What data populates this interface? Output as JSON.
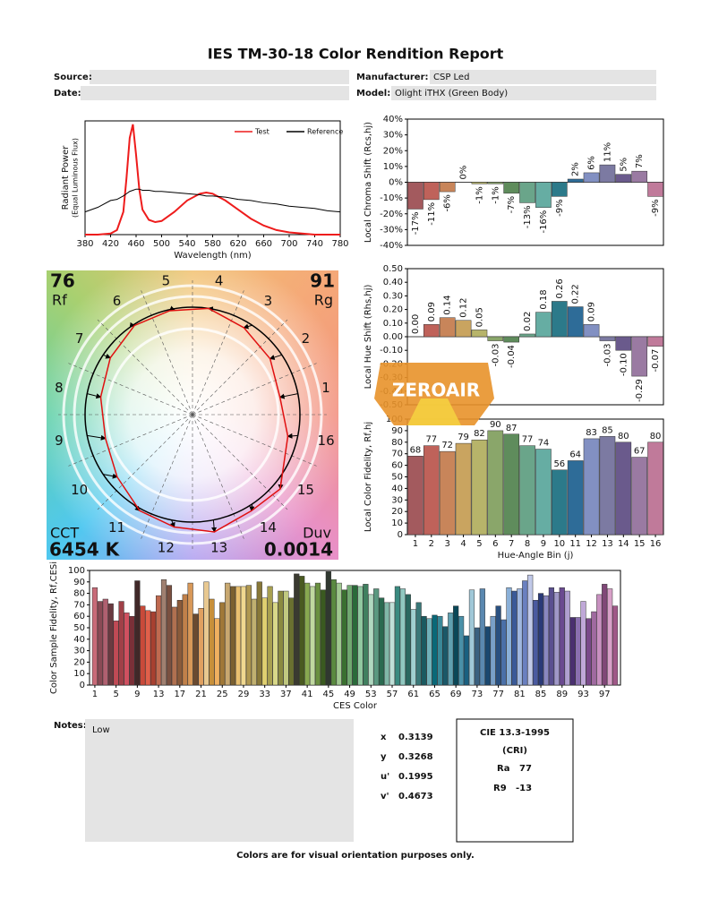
{
  "header": {
    "title": "IES TM-30-18 Color Rendition Report",
    "source_label": "Source:",
    "manufacturer_label": "Manufacturer:",
    "manufacturer": "CSP Led",
    "date_label": "Date:",
    "model_label": "Model:",
    "model": "Olight iTHX (Green Body)"
  },
  "chart_data": [
    {
      "type": "line",
      "x_label": "Wavelength (nm)",
      "y_label": "Radiant Power",
      "y_sublabel": "(Equal Luminous Flux)",
      "x": [
        380,
        400,
        420,
        430,
        440,
        445,
        450,
        455,
        460,
        465,
        470,
        480,
        490,
        500,
        520,
        540,
        560,
        570,
        580,
        600,
        620,
        640,
        660,
        680,
        700,
        720,
        740,
        760,
        780
      ],
      "series": [
        {
          "name": "Test",
          "color": "#ee1c1c",
          "values": [
            0,
            0,
            0.01,
            0.04,
            0.2,
            0.5,
            0.85,
            0.97,
            0.7,
            0.4,
            0.22,
            0.13,
            0.11,
            0.12,
            0.2,
            0.3,
            0.36,
            0.37,
            0.36,
            0.3,
            0.22,
            0.14,
            0.08,
            0.04,
            0.02,
            0.01,
            0,
            0,
            0
          ]
        },
        {
          "name": "Reference",
          "color": "#000000",
          "values": [
            0.2,
            0.24,
            0.3,
            0.31,
            0.34,
            0.36,
            0.38,
            0.39,
            0.4,
            0.4,
            0.39,
            0.39,
            0.38,
            0.38,
            0.37,
            0.36,
            0.35,
            0.34,
            0.34,
            0.33,
            0.31,
            0.3,
            0.28,
            0.27,
            0.25,
            0.24,
            0.23,
            0.21,
            0.2
          ]
        }
      ],
      "xlim": [
        380,
        780
      ],
      "xticks": [
        380,
        420,
        460,
        500,
        540,
        580,
        620,
        660,
        700,
        740,
        780
      ],
      "ylim": [
        0,
        1
      ],
      "legend": "upper right"
    },
    {
      "type": "bar",
      "y_label": "Local Chroma Shift (Rcs,hj)",
      "data_labels": "vertical",
      "values": [
        -17,
        -11,
        -6,
        0,
        -1,
        -1,
        -7,
        -13,
        -16,
        -9,
        2,
        6,
        11,
        5,
        7,
        -9
      ],
      "value_labels": [
        "-17%",
        "-11%",
        "-6%",
        "0%",
        "-1%",
        "-1%",
        "-7%",
        "-13%",
        "-16%",
        "-9%",
        "2%",
        "6%",
        "11%",
        "5%",
        "7%",
        "-9%"
      ],
      "colors": [
        "#a35a5e",
        "#bf625a",
        "#c8855a",
        "#c9a460",
        "#b7b46a",
        "#8aa66a",
        "#5f8c5c",
        "#6aa58a",
        "#66ada3",
        "#2c7a8a",
        "#2e6c98",
        "#8290c2",
        "#7c7aa2",
        "#6a5a8c",
        "#9a7aa2",
        "#c07a9a"
      ],
      "ylim": [
        -40,
        40
      ],
      "yticks": [
        {
          "value": -40,
          "label": "-40%"
        },
        {
          "value": -30,
          "label": "-30%"
        },
        {
          "value": -20,
          "label": "-20%"
        },
        {
          "value": -10,
          "label": "-10%"
        },
        {
          "value": 0,
          "label": "0%"
        },
        {
          "value": 10,
          "label": "10%"
        },
        {
          "value": 20,
          "label": "20%"
        },
        {
          "value": 30,
          "label": "30%"
        },
        {
          "value": 40,
          "label": "40%"
        }
      ]
    },
    {
      "type": "bar",
      "y_label": "Local Hue Shift (Rhs,hj)",
      "data_labels": "vertical",
      "values": [
        0,
        0.09,
        0.14,
        0.12,
        0.05,
        -0.03,
        -0.04,
        0.02,
        0.18,
        0.26,
        0.22,
        0.09,
        -0.03,
        -0.1,
        -0.29,
        -0.07
      ],
      "value_labels": [
        "0.00",
        "0.09",
        "0.14",
        "0.12",
        "0.05",
        "-0.03",
        "-0.04",
        "0.02",
        "0.18",
        "0.26",
        "0.22",
        "0.09",
        "-0.03",
        "-0.10",
        "-0.29",
        "-0.07"
      ],
      "colors": [
        "#a35a5e",
        "#bf625a",
        "#c8855a",
        "#c9a460",
        "#b7b46a",
        "#8aa66a",
        "#5f8c5c",
        "#6aa58a",
        "#66ada3",
        "#2c7a8a",
        "#2e6c98",
        "#8290c2",
        "#7c7aa2",
        "#6a5a8c",
        "#9a7aa2",
        "#c07a9a"
      ],
      "ylim": [
        -0.5,
        0.5
      ],
      "yticks": [
        {
          "value": -0.5,
          "label": "-0.50"
        },
        {
          "value": -0.4,
          "label": "-0.40"
        },
        {
          "value": -0.3,
          "label": "-0.30"
        },
        {
          "value": -0.2,
          "label": "-0.20"
        },
        {
          "value": -0.1,
          "label": "-0.10"
        },
        {
          "value": 0,
          "label": "0.00"
        },
        {
          "value": 0.1,
          "label": "0.10"
        },
        {
          "value": 0.2,
          "label": "0.20"
        },
        {
          "value": 0.3,
          "label": "0.30"
        },
        {
          "value": 0.4,
          "label": "0.40"
        },
        {
          "value": 0.5,
          "label": "0.50"
        }
      ]
    },
    {
      "type": "bar",
      "y_label": "Local Color Fidelity, Rf,hj",
      "x_label": "Hue-Angle Bin (j)",
      "data_labels": "horizontal",
      "categories": [
        "1",
        "2",
        "3",
        "4",
        "5",
        "6",
        "7",
        "8",
        "9",
        "10",
        "11",
        "12",
        "13",
        "14",
        "15",
        "16"
      ],
      "values": [
        68,
        77,
        72,
        79,
        82,
        90,
        87,
        77,
        74,
        56,
        64,
        83,
        85,
        80,
        67,
        80
      ],
      "colors": [
        "#a35a5e",
        "#bf625a",
        "#c8855a",
        "#c9a460",
        "#b7b46a",
        "#8aa66a",
        "#5f8c5c",
        "#6aa58a",
        "#66ada3",
        "#2c7a8a",
        "#2e6c98",
        "#8290c2",
        "#7c7aa2",
        "#6a5a8c",
        "#9a7aa2",
        "#c07a9a"
      ],
      "ylim": [
        0,
        100
      ],
      "yticks": [
        0,
        10,
        20,
        30,
        40,
        50,
        60,
        70,
        80,
        90,
        100
      ]
    },
    {
      "type": "vector",
      "rf_label": "Rf",
      "rf": 76,
      "rg_label": "Rg",
      "rg": 91,
      "cct_label": "CCT",
      "cct": "6454 K",
      "duv_label": "Duv",
      "duv": 0.0014,
      "bin_labels": [
        "1",
        "2",
        "3",
        "4",
        "5",
        "6",
        "7",
        "8",
        "9",
        "10",
        "11",
        "12",
        "13",
        "14",
        "15",
        "16"
      ]
    },
    {
      "type": "bar",
      "y_label": "Color Sample Fidelity, Rf,CESi",
      "x_label": "CES Color",
      "x": [
        1,
        2,
        3,
        4,
        5,
        6,
        7,
        8,
        9,
        10,
        11,
        12,
        13,
        14,
        15,
        16,
        17,
        18,
        19,
        20,
        21,
        22,
        23,
        24,
        25,
        26,
        27,
        28,
        29,
        30,
        31,
        32,
        33,
        34,
        35,
        36,
        37,
        38,
        39,
        40,
        41,
        42,
        43,
        44,
        45,
        46,
        47,
        48,
        49,
        50,
        51,
        52,
        53,
        54,
        55,
        56,
        57,
        58,
        59,
        60,
        61,
        62,
        63,
        64,
        65,
        66,
        67,
        68,
        69,
        70,
        71,
        72,
        73,
        74,
        75,
        76,
        77,
        78,
        79,
        80,
        81,
        82,
        83,
        84,
        85,
        86,
        87,
        88,
        89,
        90,
        91,
        92,
        93,
        94,
        95,
        96,
        97,
        98,
        99
      ],
      "values": [
        85,
        73,
        75,
        71,
        56,
        73,
        63,
        60,
        91,
        69,
        65,
        64,
        78,
        92,
        87,
        68,
        74,
        79,
        89,
        62,
        67,
        90,
        75,
        58,
        72,
        89,
        86,
        86,
        86,
        87,
        75,
        90,
        76,
        86,
        72,
        82,
        82,
        76,
        97,
        95,
        89,
        86,
        89,
        83,
        99,
        92,
        89,
        83,
        87,
        87,
        86,
        88,
        79,
        84,
        76,
        72,
        72,
        86,
        84,
        79,
        66,
        72,
        60,
        58,
        61,
        60,
        51,
        63,
        69,
        60,
        43,
        83,
        50,
        84,
        51,
        60,
        69,
        57,
        85,
        82,
        84,
        91,
        96,
        74,
        80,
        78,
        85,
        81,
        85,
        82,
        59,
        59,
        73,
        58,
        64,
        79,
        88,
        84,
        69
      ],
      "colors": [
        "#c86a78",
        "#8a4a55",
        "#b06070",
        "#6a3a40",
        "#c04a55",
        "#a04048",
        "#d05060",
        "#7a3038",
        "#402828",
        "#c84a3a",
        "#e0604a",
        "#a84030",
        "#c06a50",
        "#a08070",
        "#7a5040",
        "#b07050",
        "#8a5a3a",
        "#c0804a",
        "#d89858",
        "#6a4a30",
        "#e0a060",
        "#e8c890",
        "#c8903a",
        "#f0b060",
        "#a07838",
        "#c8a870",
        "#7a6030",
        "#e8c070",
        "#f0d890",
        "#b09850",
        "#c0b070",
        "#887838",
        "#e0d070",
        "#a8a050",
        "#d8d888",
        "#8a8a40",
        "#c0c880",
        "#6a7030",
        "#3a3a30",
        "#4a5a20",
        "#88a850",
        "#c0d8a0",
        "#6a9040",
        "#3a5a20",
        "#303830",
        "#5a8a40",
        "#a0c890",
        "#3a7030",
        "#70a870",
        "#2a6a3a",
        "#90c8a0",
        "#408060",
        "#b0d8c0",
        "#5a9880",
        "#2a6a50",
        "#80b8a8",
        "#c0e0d8",
        "#3a8a80",
        "#90c8c0",
        "#2a6860",
        "#a0d0d0",
        "#3a7878",
        "#1a5a60",
        "#70b0b8",
        "#0a6878",
        "#3a8898",
        "#1a5868",
        "#60a0b0",
        "#0a4858",
        "#4a90a8",
        "#1a6080",
        "#a0c8d8",
        "#3a6080",
        "#5a88b0",
        "#1a4870",
        "#7aa0c8",
        "#2a5080",
        "#4a70a8",
        "#8ab0d8",
        "#3a5a98",
        "#a0b8e0",
        "#6a80c0",
        "#c0c8e8",
        "#4a5aa0",
        "#2a3a78",
        "#8a88c0",
        "#5a5090",
        "#a098c8",
        "#6a4a90",
        "#b0a0d0",
        "#4a3070",
        "#8a70b0",
        "#c0a8d8",
        "#7a4a8a",
        "#a06aa0",
        "#c890c0",
        "#804878",
        "#d8a0c8",
        "#a05888"
      ],
      "xlim": [
        0,
        100
      ],
      "xticks": [
        1,
        5,
        9,
        13,
        17,
        21,
        25,
        29,
        33,
        37,
        41,
        45,
        49,
        53,
        57,
        61,
        65,
        69,
        73,
        77,
        81,
        85,
        89,
        93,
        97
      ],
      "ylim": [
        0,
        100
      ],
      "yticks": [
        0,
        10,
        20,
        30,
        40,
        50,
        60,
        70,
        80,
        90,
        100
      ]
    }
  ],
  "watermark": "ZEROAIR",
  "notes": {
    "label": "Notes:",
    "text": "Low"
  },
  "chromaticity": [
    {
      "label": "x",
      "value": 0.3139
    },
    {
      "label": "y",
      "value": 0.3268
    },
    {
      "label": "u'",
      "value": 0.1995
    },
    {
      "label": "v'",
      "value": 0.4673
    }
  ],
  "cri": {
    "title": "CIE 13.3-1995",
    "subtitle": "(CRI)",
    "ra_label": "Ra",
    "ra": 77,
    "r9_label": "R9",
    "r9": -13
  },
  "footer": "Colors are for visual orientation purposes only."
}
